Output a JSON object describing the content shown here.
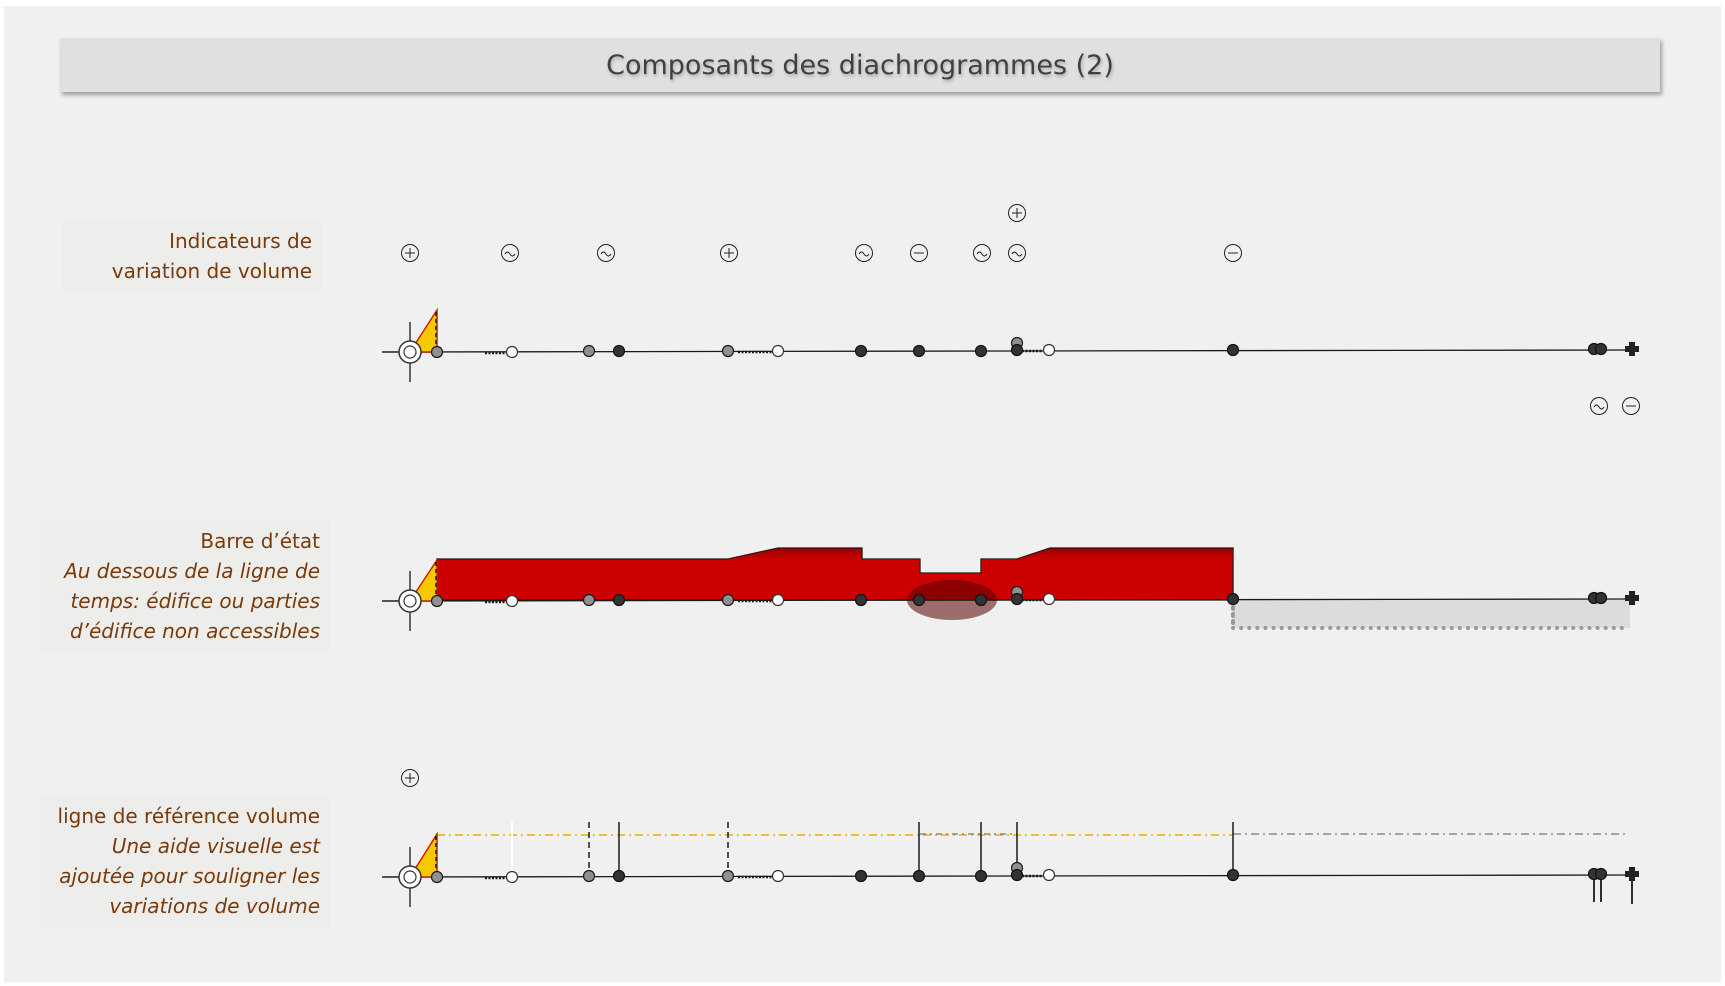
{
  "title": "Composants des diachrogrammes (2)",
  "rows": [
    {
      "heading": "Indicateurs de",
      "heading2": "variation de volume"
    },
    {
      "heading": "Barre d’état",
      "italic": [
        "Au dessous de la ligne de",
        "temps: édifice ou parties",
        "d’édifice non accessibles"
      ]
    },
    {
      "heading": "ligne de référence volume",
      "italic": [
        "Une aide visuelle est",
        "ajoutée pour souligner les",
        "variations de volume"
      ]
    }
  ],
  "volume_indicators": [
    "+",
    "~",
    "~",
    "+",
    "~",
    "−",
    "~",
    "~",
    "+",
    "−",
    "~",
    "−"
  ],
  "colors": {
    "state_bar": "#cc0000",
    "state_bar_dark": "#5a0000",
    "origin_fill": "#f5c800",
    "origin_edge": "#cc2200",
    "reference_line": "#f0b000",
    "background": "#f0f0f0",
    "label_text": "#7a3a0a"
  }
}
